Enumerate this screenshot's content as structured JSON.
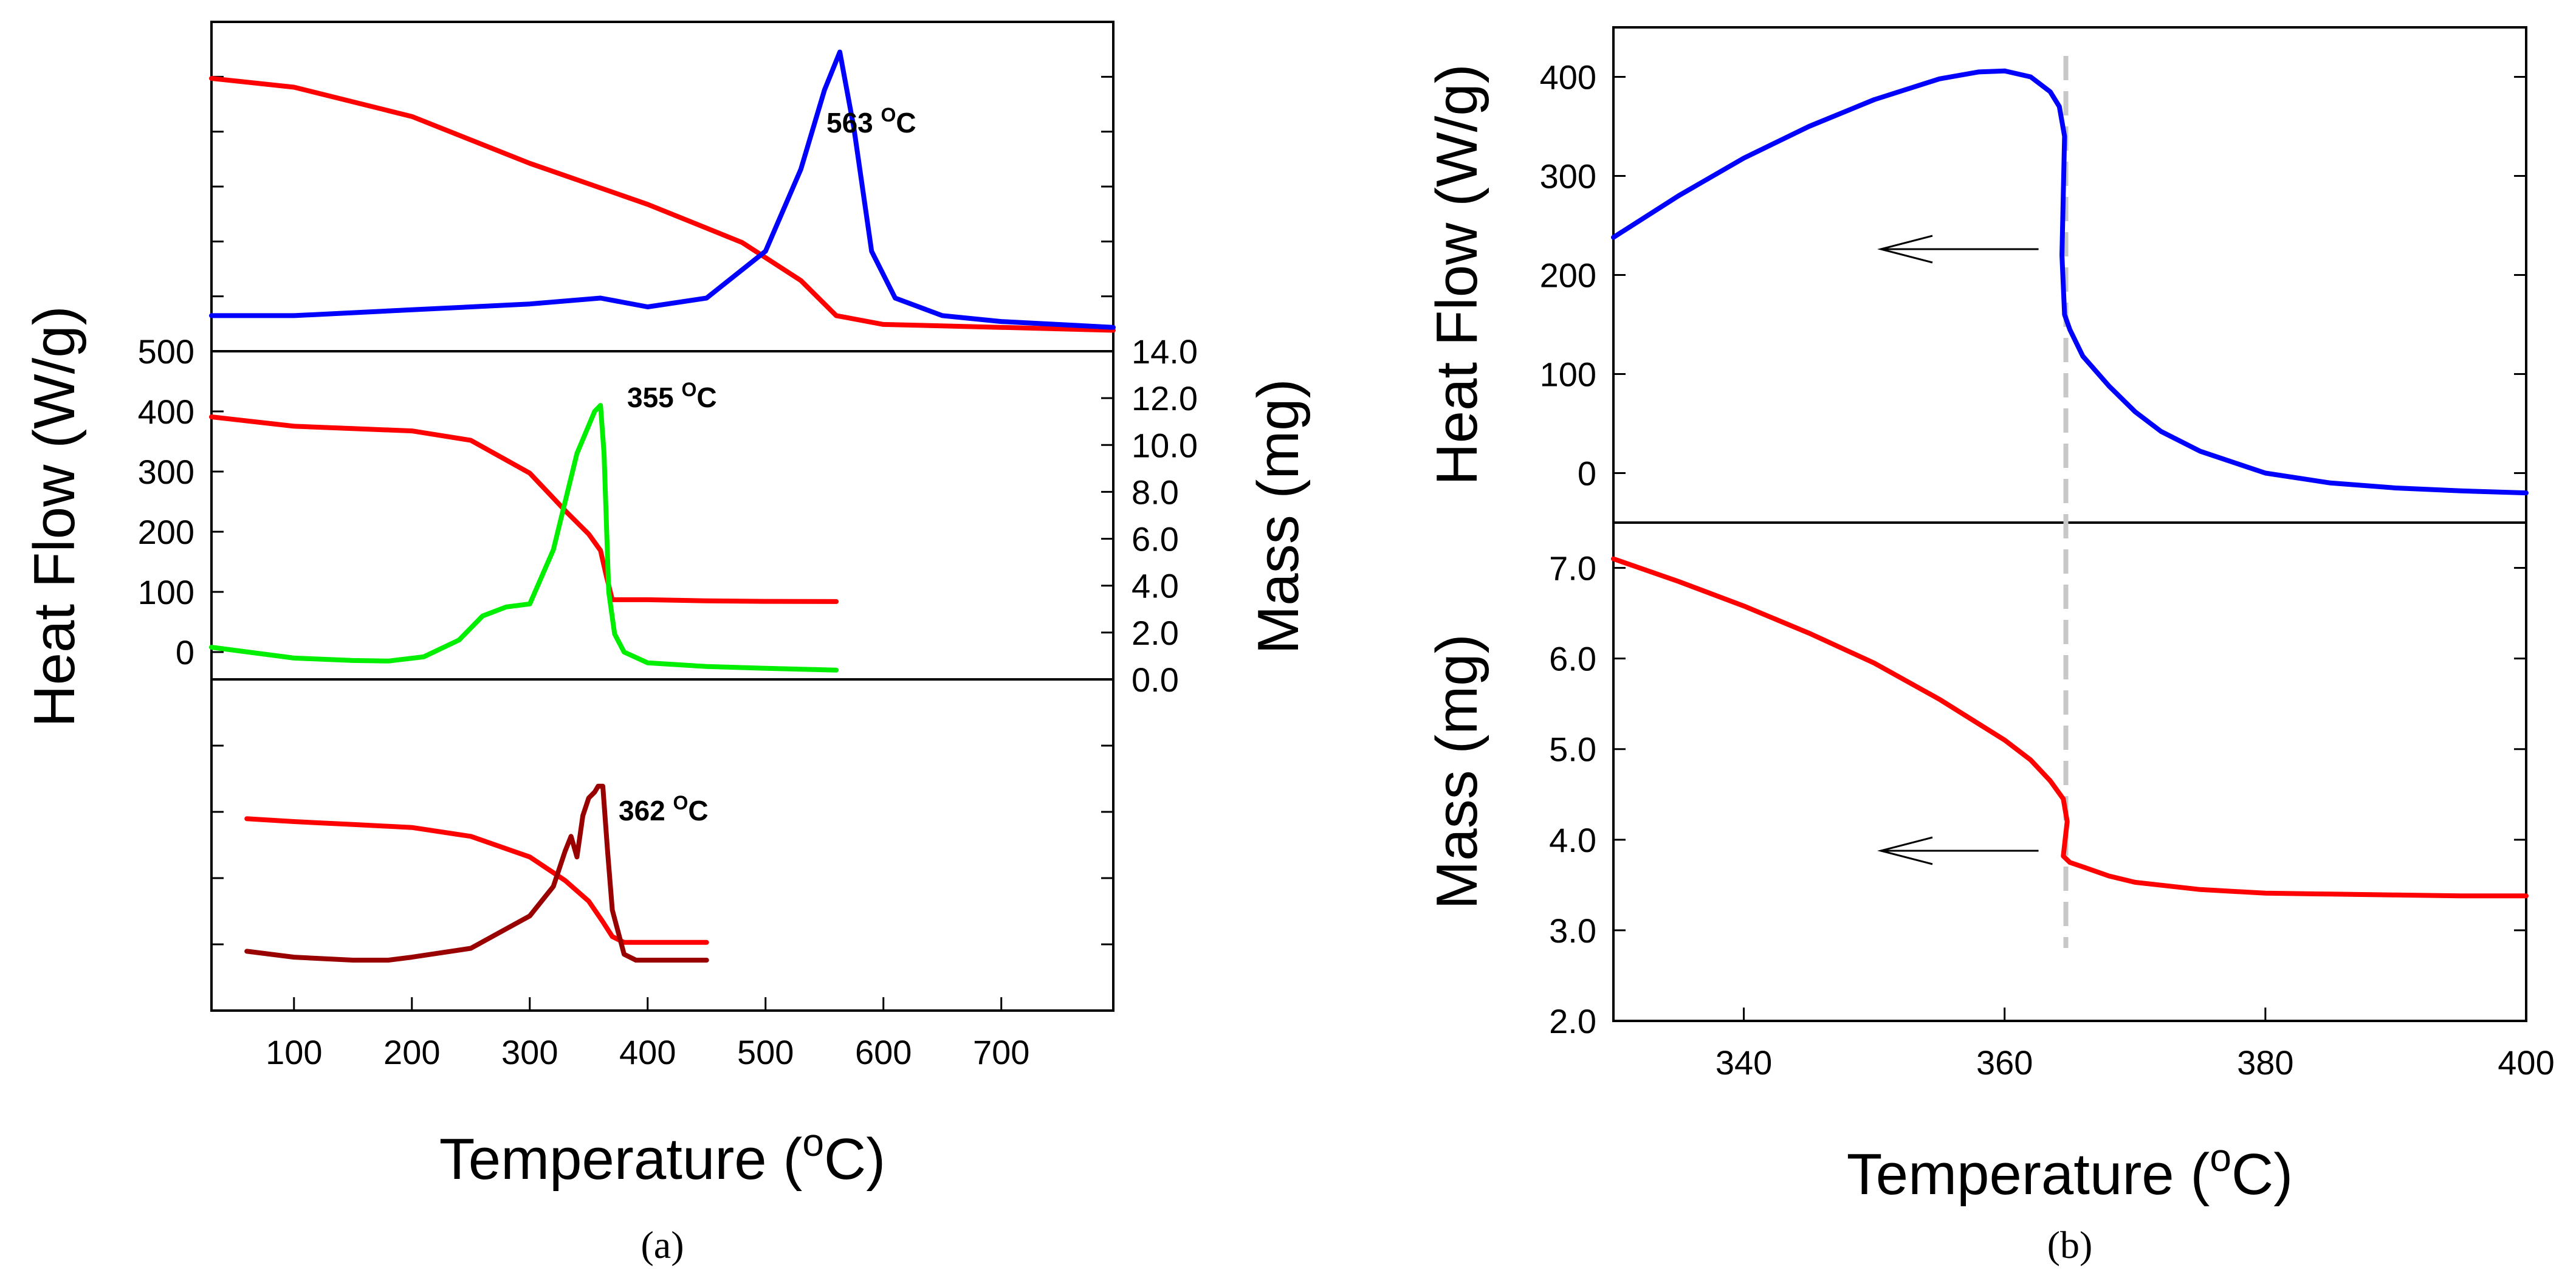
{
  "chart_data": [
    {
      "type": "line",
      "panel": "a",
      "panel_label": "(a)",
      "xlabel": "Temperature (oC)",
      "xlabel_parts": [
        "Temperature (",
        "o",
        "C)"
      ],
      "ylabel_left": "Heat Flow (W/g)",
      "ylabel_right": "Mass (mg)",
      "xlim": [
        30,
        795
      ],
      "xticks": [
        100,
        200,
        300,
        400,
        500,
        600,
        700
      ],
      "subplots": [
        {
          "position": "top",
          "annotation": {
            "value": "563",
            "unit_sup": "O",
            "unit": "C",
            "x": 563
          },
          "series": [
            {
              "color": "#ff0000",
              "x": [
                30,
                100,
                200,
                300,
                400,
                480,
                530,
                560,
                600,
                700,
                795
              ],
              "y": [
                0.89,
                0.86,
                0.76,
                0.6,
                0.46,
                0.33,
                0.2,
                0.08,
                0.05,
                0.04,
                0.03
              ]
            },
            {
              "color": "#0000ff",
              "x": [
                30,
                100,
                200,
                300,
                360,
                400,
                450,
                500,
                530,
                550,
                563,
                575,
                590,
                610,
                650,
                700,
                795
              ],
              "y": [
                0.08,
                0.08,
                0.1,
                0.12,
                0.14,
                0.11,
                0.14,
                0.3,
                0.58,
                0.85,
                0.98,
                0.72,
                0.3,
                0.14,
                0.08,
                0.06,
                0.04
              ]
            }
          ]
        },
        {
          "position": "middle",
          "annotation": {
            "value": "355",
            "unit_sup": "O",
            "unit": "C",
            "x": 355
          },
          "heat_flow_ylim": [
            -50,
            500
          ],
          "heat_flow_ticks": [
            0,
            100,
            200,
            300,
            400,
            500
          ],
          "mass_ylim": [
            0,
            14
          ],
          "mass_ticks": [
            "0.0",
            "2.0",
            "4.0",
            "6.0",
            "8.0",
            "10.0",
            "12.0",
            "14.0"
          ],
          "series": [
            {
              "color": "#ff0000",
              "axis": "mass",
              "x": [
                30,
                100,
                150,
                200,
                250,
                300,
                330,
                350,
                360,
                365,
                370,
                400,
                450,
                500,
                560
              ],
              "y": [
                11.2,
                10.8,
                10.7,
                10.6,
                10.2,
                8.8,
                7.2,
                6.2,
                5.5,
                4.4,
                3.4,
                3.4,
                3.35,
                3.33,
                3.32
              ]
            },
            {
              "color": "#00ee00",
              "axis": "heat_flow",
              "x": [
                30,
                100,
                150,
                180,
                210,
                240,
                260,
                280,
                300,
                320,
                340,
                355,
                360,
                363,
                367,
                372,
                380,
                400,
                450,
                500,
                560
              ],
              "y": [
                8,
                -10,
                -14,
                -15,
                -8,
                20,
                60,
                75,
                80,
                170,
                330,
                400,
                410,
                330,
                100,
                30,
                0,
                -18,
                -24,
                -27,
                -30
              ]
            }
          ]
        },
        {
          "position": "bottom",
          "annotation": {
            "value": "362",
            "unit_sup": "O",
            "unit": "C",
            "x": 362
          },
          "series": [
            {
              "color": "#ff0000",
              "x": [
                60,
                100,
                150,
                200,
                250,
                300,
                330,
                350,
                362,
                370,
                380,
                400,
                450
              ],
              "y": [
                0.61,
                0.6,
                0.59,
                0.58,
                0.55,
                0.48,
                0.4,
                0.33,
                0.26,
                0.21,
                0.19,
                0.19,
                0.19
              ]
            },
            {
              "color": "#990000",
              "x": [
                60,
                100,
                150,
                180,
                200,
                250,
                300,
                320,
                330,
                335,
                340,
                345,
                350,
                355,
                358,
                362,
                366,
                370,
                380,
                390,
                400,
                450
              ],
              "y": [
                0.16,
                0.14,
                0.13,
                0.13,
                0.14,
                0.17,
                0.28,
                0.38,
                0.5,
                0.55,
                0.48,
                0.62,
                0.68,
                0.7,
                0.72,
                0.72,
                0.5,
                0.3,
                0.15,
                0.13,
                0.13,
                0.13
              ]
            }
          ]
        }
      ]
    },
    {
      "type": "line",
      "panel": "b",
      "panel_label": "(b)",
      "xlabel": "Temperature (oC)",
      "xlabel_parts": [
        "Temperature (",
        "o",
        "C)"
      ],
      "xlim": [
        330,
        400
      ],
      "xticks": [
        340,
        360,
        380,
        400
      ],
      "transition_x": 364.7,
      "subplots": [
        {
          "position": "top",
          "ylabel": "Heat Flow (W/g)",
          "ylim": [
            -50,
            450
          ],
          "yticks": [
            0,
            100,
            200,
            300,
            400
          ],
          "series": [
            {
              "color": "#0000ff",
              "x": [
                330,
                335,
                340,
                345,
                350,
                355,
                358,
                360,
                362,
                363.5,
                364.2,
                364.6,
                364.4,
                364.6,
                365,
                366,
                368,
                370,
                372,
                375,
                380,
                385,
                390,
                395,
                400
              ],
              "y": [
                238,
                280,
                318,
                350,
                377,
                398,
                405,
                406,
                400,
                385,
                370,
                340,
                220,
                160,
                145,
                118,
                88,
                62,
                42,
                22,
                0,
                -10,
                -15,
                -18,
                -20
              ]
            }
          ]
        },
        {
          "position": "bottom",
          "ylabel": "Mass (mg)",
          "ylim": [
            2.0,
            7.5
          ],
          "yticks": [
            "2.0",
            "3.0",
            "4.0",
            "5.0",
            "6.0",
            "7.0"
          ],
          "series": [
            {
              "color": "#ff0000",
              "x": [
                330,
                335,
                340,
                345,
                350,
                355,
                360,
                362,
                363.5,
                364.5,
                364.8,
                364.5,
                365,
                366,
                368,
                370,
                375,
                380,
                385,
                390,
                395,
                400
              ],
              "y": [
                7.1,
                6.85,
                6.58,
                6.28,
                5.95,
                5.55,
                5.1,
                4.88,
                4.65,
                4.45,
                4.2,
                3.82,
                3.75,
                3.7,
                3.6,
                3.53,
                3.45,
                3.41,
                3.4,
                3.39,
                3.38,
                3.38
              ]
            }
          ]
        }
      ]
    }
  ]
}
